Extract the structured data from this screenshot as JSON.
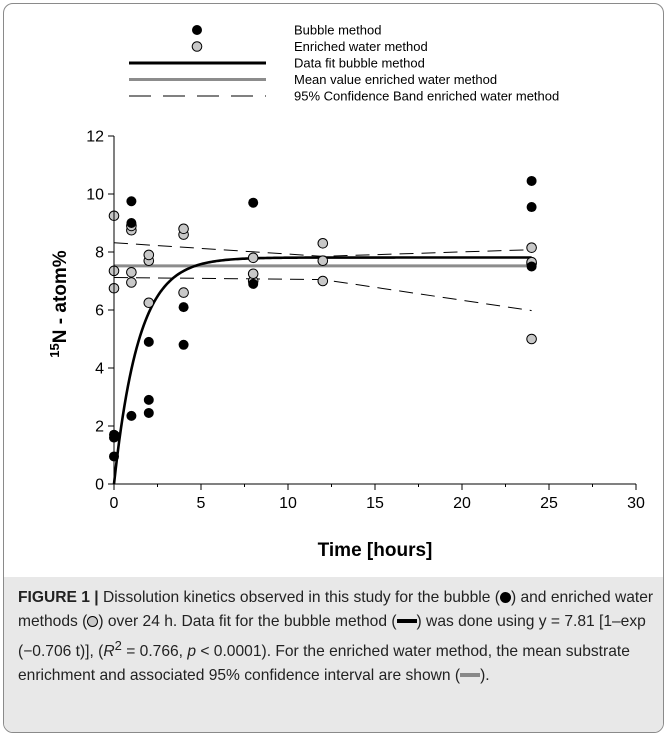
{
  "chart_data": {
    "type": "scatter",
    "xlabel": "Time [hours]",
    "ylabel_sup": "15",
    "ylabel_main": "N - atom%",
    "xlim": [
      0,
      30
    ],
    "ylim": [
      0,
      12
    ],
    "x_ticks": [
      "0",
      "5",
      "10",
      "15",
      "20",
      "25",
      "30"
    ],
    "y_ticks": [
      "0",
      "2",
      "4",
      "6",
      "8",
      "10",
      "12"
    ],
    "grid": false,
    "legend_position": "top",
    "legend": [
      {
        "label": "Bubble method",
        "kind": "black-dot"
      },
      {
        "label": "Enriched water method",
        "kind": "grey-dot"
      },
      {
        "label": "Data fit bubble method",
        "kind": "black-line"
      },
      {
        "label": "Mean value enriched water method",
        "kind": "grey-line"
      },
      {
        "label": "95% Confidence Band enriched water method",
        "kind": "dashed-line"
      }
    ],
    "series": [
      {
        "name": "Bubble method",
        "color": "#000000",
        "points": [
          [
            0,
            0.95
          ],
          [
            0,
            1.6
          ],
          [
            0,
            1.7
          ],
          [
            0.1,
            1.65
          ],
          [
            1,
            2.35
          ],
          [
            1,
            9.0
          ],
          [
            1,
            9.75
          ],
          [
            2,
            2.45
          ],
          [
            2,
            2.9
          ],
          [
            2,
            4.9
          ],
          [
            4,
            4.8
          ],
          [
            4,
            6.1
          ],
          [
            8,
            6.9
          ],
          [
            8,
            9.7
          ],
          [
            24,
            7.5
          ],
          [
            24,
            9.55
          ],
          [
            24,
            10.45
          ]
        ]
      },
      {
        "name": "Enriched water method",
        "color": "#c8c8c8",
        "points": [
          [
            0,
            6.75
          ],
          [
            0,
            7.35
          ],
          [
            0,
            9.25
          ],
          [
            1,
            6.95
          ],
          [
            1,
            7.3
          ],
          [
            1,
            8.75
          ],
          [
            1,
            8.9
          ],
          [
            2,
            6.25
          ],
          [
            2,
            7.7
          ],
          [
            2,
            7.9
          ],
          [
            4,
            6.6
          ],
          [
            4,
            8.6
          ],
          [
            4,
            8.8
          ],
          [
            8,
            7.0
          ],
          [
            8,
            7.25
          ],
          [
            8,
            7.8
          ],
          [
            12,
            7.0
          ],
          [
            12,
            7.7
          ],
          [
            12,
            8.3
          ],
          [
            24,
            5.0
          ],
          [
            24,
            7.6
          ],
          [
            24,
            7.65
          ],
          [
            24,
            8.15
          ]
        ]
      }
    ],
    "fit": {
      "name": "Data fit bubble method",
      "a": 7.81,
      "k": 0.706,
      "x_range": [
        0,
        24
      ],
      "color": "#000000"
    },
    "mean": {
      "name": "Mean value enriched water method",
      "value": 7.52,
      "x_range": [
        0,
        24
      ],
      "color": "#8c8c8c"
    },
    "confidence_band": {
      "name": "95% Confidence Band enriched water method",
      "upper": [
        [
          0,
          8.32
        ],
        [
          12,
          7.85
        ],
        [
          24,
          8.08
        ]
      ],
      "lower": [
        [
          0,
          7.12
        ],
        [
          12,
          7.05
        ],
        [
          24,
          5.98
        ]
      ]
    }
  },
  "caption": {
    "label": "FIGURE 1 |",
    "text_1": " Dissolution kinetics observed in this study for the bubble (",
    "text_2": ") and enriched water methods (",
    "text_3": ") over 24 h. Data fit for the bubble method (",
    "text_4": ") was done using y = 7.81 [1–exp (−0.706 t)], (",
    "r2": "R",
    "r2_sup": "2",
    "text_5": " = 0.766, ",
    "p": "p",
    "text_6": " < 0.0001). For the enriched water method, the mean substrate enrichment and associated 95% confidence interval are shown (",
    "text_7": ")."
  }
}
